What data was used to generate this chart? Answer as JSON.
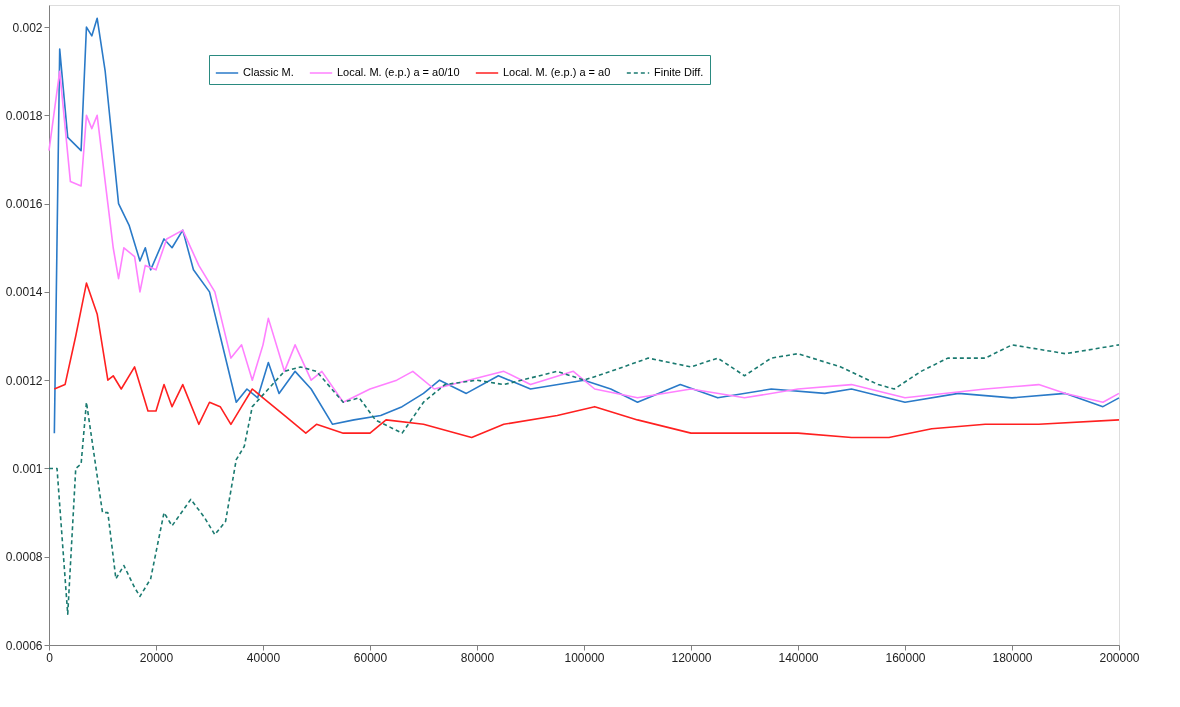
{
  "chart_data": {
    "type": "line",
    "xlim": [
      0,
      200000
    ],
    "xticks": [
      0,
      20000,
      40000,
      60000,
      80000,
      100000,
      120000,
      140000,
      160000,
      180000,
      200000
    ],
    "ylim": [
      0.0006,
      0.00205
    ],
    "yticks": [
      0.0006,
      0.0008,
      0.001,
      0.0012,
      0.0014,
      0.0016,
      0.0018,
      0.002
    ],
    "grid": false,
    "legend": "top",
    "marker": "none",
    "series": [
      {
        "name": "Classic M.",
        "color": "#2a7ac8",
        "line_style": "solid",
        "x": [
          1000,
          2000,
          3500,
          6000,
          7000,
          8000,
          9000,
          10500,
          13000,
          15000,
          17000,
          18000,
          19000,
          21500,
          23000,
          25000,
          27000,
          30000,
          32000,
          35000,
          37000,
          39000,
          41000,
          43000,
          46000,
          49000,
          53000,
          57000,
          62000,
          66000,
          70000,
          73000,
          78000,
          84000,
          90000,
          100000,
          105000,
          110000,
          118000,
          125000,
          135000,
          145000,
          150000,
          160000,
          170000,
          180000,
          190000,
          197000,
          200000
        ],
        "values": [
          0.00108,
          0.00195,
          0.00175,
          0.00172,
          0.002,
          0.00198,
          0.00202,
          0.0019,
          0.0016,
          0.00155,
          0.00147,
          0.0015,
          0.00145,
          0.00152,
          0.0015,
          0.00154,
          0.00145,
          0.0014,
          0.0013,
          0.00115,
          0.00118,
          0.00116,
          0.00124,
          0.00117,
          0.00122,
          0.00118,
          0.0011,
          0.00111,
          0.00112,
          0.00114,
          0.00117,
          0.0012,
          0.00117,
          0.00121,
          0.00118,
          0.0012,
          0.00118,
          0.00115,
          0.00119,
          0.00116,
          0.00118,
          0.00117,
          0.00118,
          0.00115,
          0.00117,
          0.00116,
          0.00117,
          0.00114,
          0.00116
        ]
      },
      {
        "name": "Local. M. (e.p.) a = a0/10",
        "color": "#ff80ff",
        "line_style": "solid",
        "x": [
          0,
          2000,
          4000,
          6000,
          7000,
          8000,
          9000,
          11000,
          12000,
          13000,
          14000,
          16000,
          17000,
          18000,
          20000,
          22000,
          25000,
          28000,
          31000,
          34000,
          36000,
          38000,
          40000,
          41000,
          44000,
          46000,
          49000,
          51000,
          55000,
          60000,
          65000,
          68000,
          72000,
          85000,
          90000,
          98000,
          102000,
          110000,
          120000,
          130000,
          140000,
          150000,
          160000,
          175000,
          185000,
          190000,
          197000,
          200000
        ],
        "values": [
          0.00172,
          0.0019,
          0.00165,
          0.00164,
          0.0018,
          0.00177,
          0.0018,
          0.0016,
          0.0015,
          0.00143,
          0.0015,
          0.00148,
          0.0014,
          0.00146,
          0.00145,
          0.00152,
          0.00154,
          0.00146,
          0.0014,
          0.00125,
          0.00128,
          0.0012,
          0.00128,
          0.00134,
          0.00122,
          0.00128,
          0.0012,
          0.00122,
          0.00115,
          0.00118,
          0.0012,
          0.00122,
          0.00118,
          0.00122,
          0.00119,
          0.00122,
          0.00118,
          0.00116,
          0.00118,
          0.00116,
          0.00118,
          0.00119,
          0.00116,
          0.00118,
          0.00119,
          0.00117,
          0.00115,
          0.00117
        ]
      },
      {
        "name": "Local. M. (e.p.) a = a0",
        "color": "#ff2020",
        "line_style": "solid",
        "x": [
          1000,
          3000,
          5000,
          6000,
          7000,
          9000,
          11000,
          12000,
          13500,
          16000,
          18500,
          20000,
          21500,
          23000,
          25000,
          28000,
          30000,
          32000,
          34000,
          36000,
          38000,
          40000,
          44000,
          48000,
          50000,
          55000,
          60000,
          63000,
          70000,
          79000,
          85000,
          95000,
          102000,
          110000,
          120000,
          130000,
          140000,
          150000,
          157000,
          165000,
          175000,
          185000,
          200000
        ],
        "values": [
          0.00118,
          0.00119,
          0.0013,
          0.00136,
          0.00142,
          0.00135,
          0.0012,
          0.00121,
          0.00118,
          0.00123,
          0.00113,
          0.00113,
          0.00119,
          0.00114,
          0.00119,
          0.0011,
          0.00115,
          0.00114,
          0.0011,
          0.00114,
          0.00118,
          0.00116,
          0.00112,
          0.00108,
          0.0011,
          0.00108,
          0.00108,
          0.00111,
          0.0011,
          0.00107,
          0.0011,
          0.00112,
          0.00114,
          0.00111,
          0.00108,
          0.00108,
          0.00108,
          0.00107,
          0.00107,
          0.00109,
          0.0011,
          0.0011,
          0.00111
        ]
      },
      {
        "name": "Finite Diff.",
        "color": "#1a7a70",
        "line_style": "dashed",
        "x": [
          0,
          1500,
          3500,
          5000,
          6000,
          7000,
          10000,
          11000,
          12500,
          14000,
          16000,
          17000,
          19000,
          21500,
          23000,
          26500,
          29000,
          31000,
          33000,
          35000,
          36500,
          38000,
          41000,
          44000,
          47000,
          50000,
          55000,
          58000,
          61000,
          66000,
          70000,
          74000,
          80000,
          85000,
          95000,
          100000,
          105000,
          112000,
          120000,
          125000,
          130000,
          135000,
          140000,
          148000,
          155000,
          158000,
          163000,
          168000,
          175000,
          180000,
          190000,
          200000
        ],
        "values": [
          0.001,
          0.001,
          0.00067,
          0.001,
          0.00101,
          0.00115,
          0.0009,
          0.0009,
          0.00075,
          0.00078,
          0.00073,
          0.00071,
          0.00075,
          0.0009,
          0.00087,
          0.00093,
          0.00089,
          0.00085,
          0.00088,
          0.00102,
          0.00105,
          0.00114,
          0.00118,
          0.00122,
          0.00123,
          0.00122,
          0.00115,
          0.00116,
          0.00111,
          0.00108,
          0.00115,
          0.00119,
          0.0012,
          0.00119,
          0.00122,
          0.0012,
          0.00122,
          0.00125,
          0.00123,
          0.00125,
          0.00121,
          0.00125,
          0.00126,
          0.00123,
          0.00119,
          0.00118,
          0.00122,
          0.00125,
          0.00125,
          0.00128,
          0.00126,
          0.00128
        ]
      }
    ]
  }
}
